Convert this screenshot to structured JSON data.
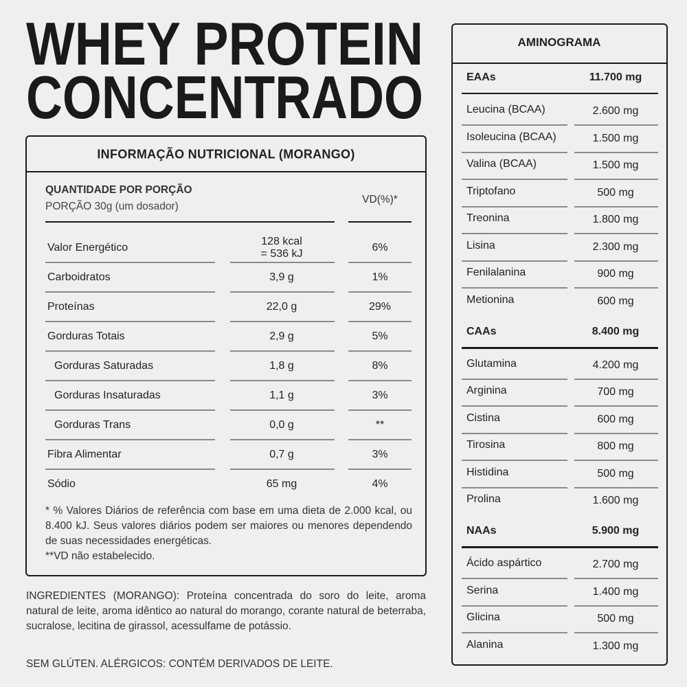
{
  "title": [
    "WHEY PROTEIN",
    "CONCENTRADO"
  ],
  "nutrition": {
    "title": "INFORMAÇÃO NUTRICIONAL (MORANGO)",
    "portion_heading": "QUANTIDADE POR PORÇÃO",
    "portion": "PORÇÃO 30g (um dosador)",
    "vd_heading": "VD(%)*",
    "rows": [
      {
        "name": "Valor Energético",
        "amount": [
          "128 kcal",
          "= 536 kJ"
        ],
        "vd": "6%"
      },
      {
        "name": "Carboidratos",
        "amount": [
          "3,9 g"
        ],
        "vd": "1%"
      },
      {
        "name": "Proteínas",
        "amount": [
          "22,0 g"
        ],
        "vd": "29%"
      },
      {
        "name": "Gorduras Totais",
        "amount": [
          "2,9 g"
        ],
        "vd": "5%"
      },
      {
        "name": "Gorduras Saturadas",
        "amount": [
          "1,8 g"
        ],
        "vd": "8%"
      },
      {
        "name": "Gorduras Insaturadas",
        "amount": [
          "1,1 g"
        ],
        "vd": "3%"
      },
      {
        "name": "Gorduras Trans",
        "amount": [
          "0,0 g"
        ],
        "vd": "**"
      },
      {
        "name": "Fibra Alimentar",
        "amount": [
          "0,7 g"
        ],
        "vd": "3%"
      },
      {
        "name": "Sódio",
        "amount": [
          "65 mg"
        ],
        "vd": "4%"
      }
    ],
    "footnote": [
      "* % Valores Diários de referência com base em uma dieta de 2.000 kcal, ou 8.400 kJ. Seus valores diários podem ser maiores ou menores dependendo de suas necessidades energéticas.",
      "**VD não estabelecido."
    ]
  },
  "ingredients": "INGREDIENTES (MORANGO): Proteína concentrada do soro do leite, aroma natural de leite, aroma idêntico ao natural do morango, corante natural de beterraba, sucralose, lecitina de girassol, acessulfame de potássio.",
  "allergens": "SEM GLÚTEN. ALÉRGICOS: CONTÉM DERIVADOS DE LEITE.",
  "aminogram": {
    "title": "AMINOGRAMA",
    "groups": [
      {
        "name": "EAAs",
        "total": "11.700 mg",
        "items": [
          {
            "name": "Leucina (BCAA)",
            "amount": "2.600 mg"
          },
          {
            "name": "Isoleucina (BCAA)",
            "amount": "1.500 mg"
          },
          {
            "name": "Valina (BCAA)",
            "amount": "1.500 mg"
          },
          {
            "name": "Triptofano",
            "amount": "500 mg"
          },
          {
            "name": "Treonina",
            "amount": "1.800 mg"
          },
          {
            "name": "Lisina",
            "amount": "2.300 mg"
          },
          {
            "name": "Fenilalanina",
            "amount": "900 mg"
          },
          {
            "name": "Metionina",
            "amount": "600 mg"
          }
        ]
      },
      {
        "name": "CAAs",
        "total": "8.400 mg",
        "items": [
          {
            "name": "Glutamina",
            "amount": "4.200 mg"
          },
          {
            "name": "Arginina",
            "amount": "700 mg"
          },
          {
            "name": "Cistina",
            "amount": "600 mg"
          },
          {
            "name": "Tirosina",
            "amount": "800 mg"
          },
          {
            "name": "Histidina",
            "amount": "500 mg"
          },
          {
            "name": "Prolina",
            "amount": "1.600 mg"
          }
        ]
      },
      {
        "name": "NAAs",
        "total": "5.900 mg",
        "items": [
          {
            "name": "Ácido aspártico",
            "amount": "2.700 mg"
          },
          {
            "name": "Serina",
            "amount": "1.400 mg"
          },
          {
            "name": "Glicina",
            "amount": "500 mg"
          },
          {
            "name": "Alanina",
            "amount": "1.300 mg"
          }
        ]
      }
    ]
  }
}
